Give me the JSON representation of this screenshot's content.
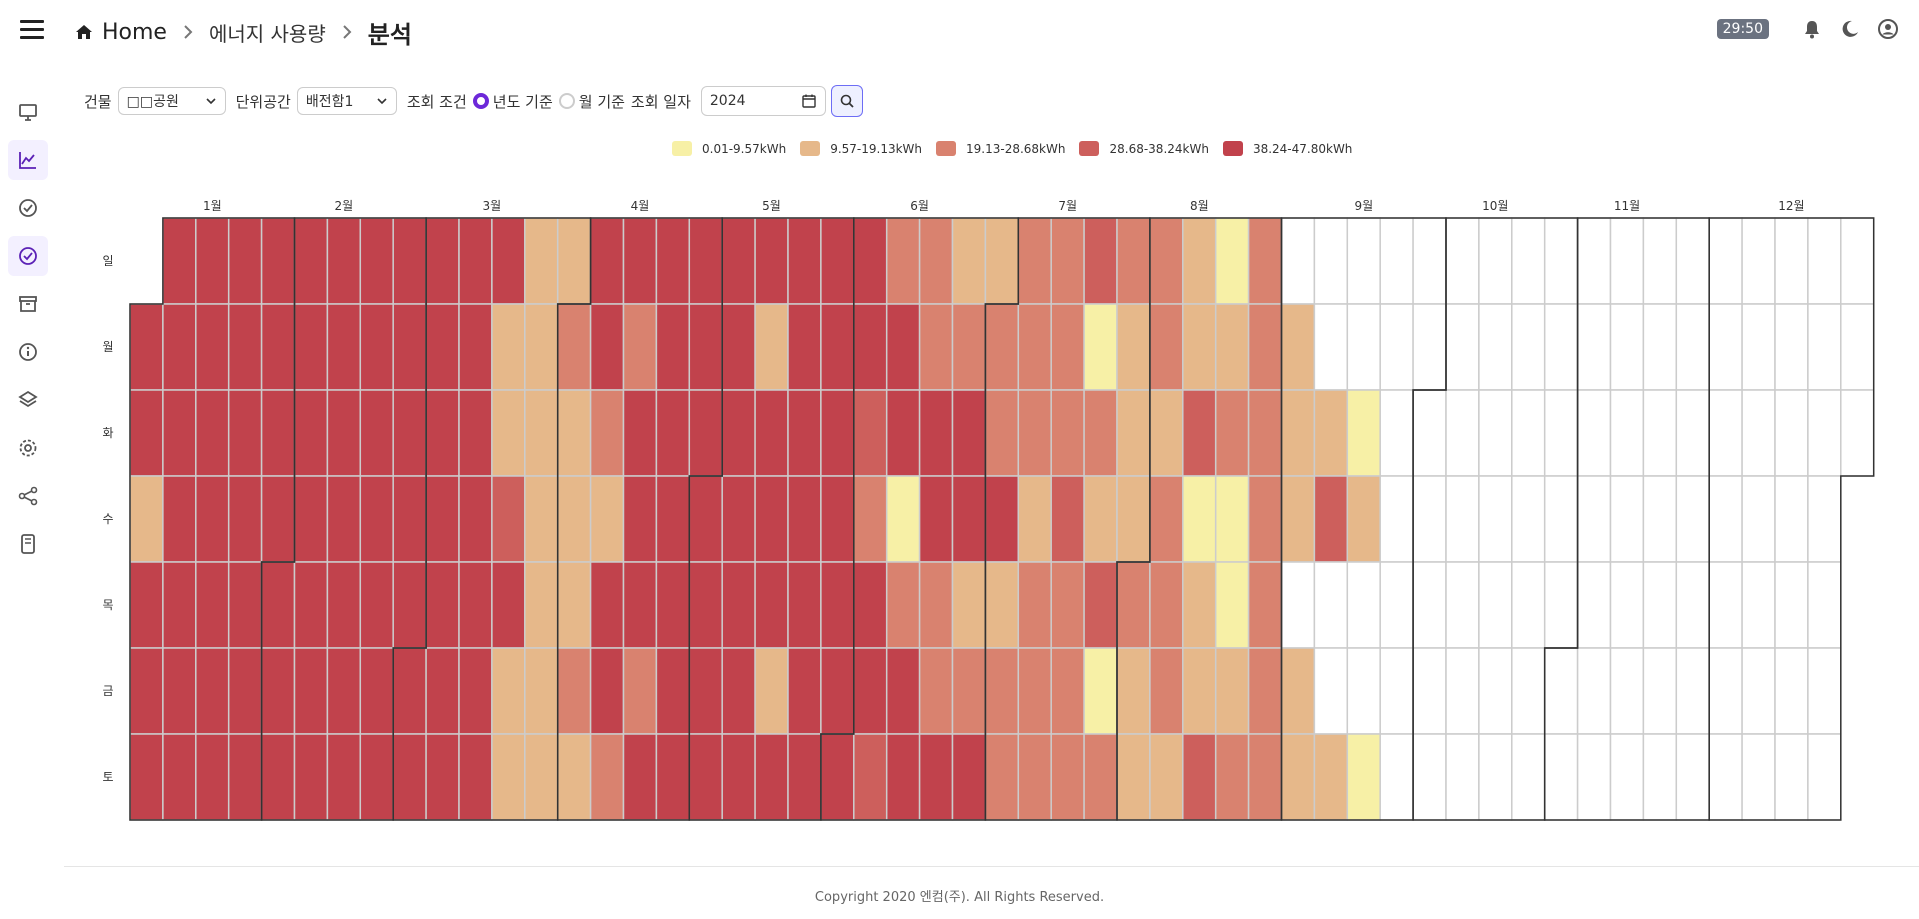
{
  "header": {
    "breadcrumb_home": "Home",
    "breadcrumb_mid": "에너지 사용량",
    "breadcrumb_current": "분석",
    "timer": "29:50"
  },
  "sidebar": {
    "items": [
      {
        "icon": "monitor-icon",
        "active": false
      },
      {
        "icon": "chart-line-icon",
        "active": true
      },
      {
        "icon": "check-circle-icon",
        "active": false
      },
      {
        "icon": "check-circle-filled-icon",
        "active": true
      },
      {
        "icon": "archive-icon",
        "active": false
      },
      {
        "icon": "info-icon",
        "active": false
      },
      {
        "icon": "layers-icon",
        "active": false
      },
      {
        "icon": "gear-icon",
        "active": false
      },
      {
        "icon": "share-icon",
        "active": false
      },
      {
        "icon": "device-icon",
        "active": false
      }
    ]
  },
  "filters": {
    "building_label": "건물",
    "building_value": "□□공원",
    "space_label": "단위공간",
    "space_value": "배전함1",
    "condition_label": "조회 조건",
    "radio_year": "년도 기준",
    "radio_month": "월 기준",
    "date_label": "조회 일자",
    "date_value": "2024"
  },
  "chart_data": {
    "type": "heatmap",
    "year": 2024,
    "months": [
      "1월",
      "2월",
      "3월",
      "4월",
      "5월",
      "6월",
      "7월",
      "8월",
      "9월",
      "10월",
      "11월",
      "12월"
    ],
    "weekdays": [
      "일",
      "월",
      "화",
      "수",
      "목",
      "금",
      "토"
    ],
    "legend": [
      {
        "label": "0.01-9.57kWh",
        "color": "#f7f0a6"
      },
      {
        "label": "9.57-19.13kWh",
        "color": "#e6b88a"
      },
      {
        "label": "19.13-28.68kWh",
        "color": "#d9826f"
      },
      {
        "label": "28.68-38.24kWh",
        "color": "#cd5f5c"
      },
      {
        "label": "38.24-47.80kWh",
        "color": "#c1424c"
      }
    ],
    "levels_by_week_note": "rows = weekdays Sun..Sat, each string = weeks 1..53 for year 2024; 0=no data, 1..5 = legend bucket",
    "levels": [
      "55555555555522555555555332233433213000000000000000000",
      "55555555555223535552555533333123223200000000000000000",
      "55555555555222355555554555333322433221000000000000000",
      "25555555555422255555553155524223113242000000000000000",
      "55555555555522555555555332233433213000000000000000000",
      "55555555555223535552555533333123223200000000000000000",
      "55555555555222355555554555333322433221000000000000000"
    ]
  },
  "footer": {
    "copyright": "Copyright 2020 엔컴(주). All Rights Reserved."
  }
}
